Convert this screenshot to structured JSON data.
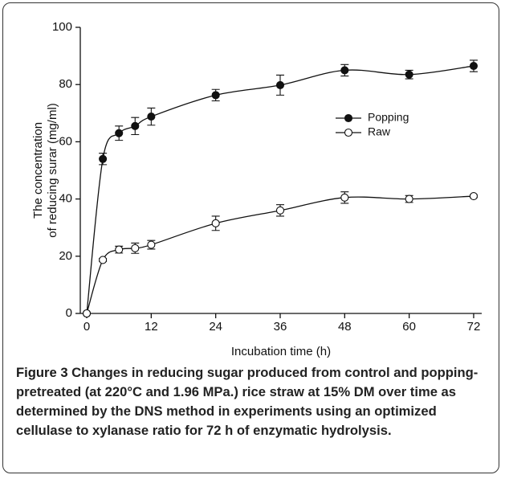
{
  "chart_data": {
    "type": "line",
    "xlabel": "Incubation time (h)",
    "ylabel": [
      "The concentration",
      "of reducing surar (mg/ml)"
    ],
    "x": [
      0,
      3,
      6,
      9,
      12,
      24,
      36,
      48,
      60,
      72
    ],
    "series": [
      {
        "name": "Popping",
        "color": "#111111",
        "marker": "filled",
        "values": [
          0,
          54,
          63,
          65.5,
          68.8,
          76.3,
          79.8,
          85,
          83.5,
          86.5
        ],
        "errors": [
          0,
          2,
          2.5,
          3,
          3,
          2,
          3.5,
          2,
          1.5,
          2
        ]
      },
      {
        "name": "Raw",
        "color": "#111111",
        "marker": "open",
        "values": [
          0,
          18.7,
          22.3,
          22.8,
          24,
          31.5,
          36,
          40.5,
          40,
          41
        ],
        "errors": [
          0,
          0.5,
          1.2,
          1.8,
          1.5,
          2.5,
          2,
          2,
          1.2,
          0.5
        ]
      }
    ],
    "xlim": [
      -1.2,
      73.5
    ],
    "xticks": [
      0,
      12,
      24,
      36,
      48,
      60,
      72
    ],
    "ylim": [
      0,
      100
    ],
    "yticks": [
      0,
      20,
      40,
      60,
      80,
      100
    ],
    "grid": false,
    "legend": "upper right"
  },
  "caption": {
    "label": "Figure 3",
    "text": "Changes in reducing sugar produced from control and popping-pretreated (at 220°C and 1.96 MPa.) rice straw at 15% DM over time as determined by the DNS method in experiments using an optimized cellulase to xylanase ratio for 72 h of enzymatic hydrolysis."
  }
}
